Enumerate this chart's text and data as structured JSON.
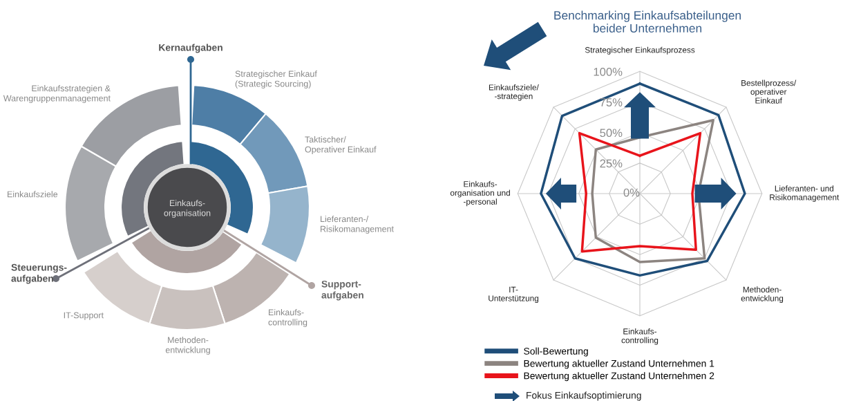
{
  "chart_data": [
    {
      "type": "other",
      "annotations": [
        "Kernaufgaben",
        "Strategischer Einkauf\n(Strategic Sourcing)",
        "Taktischer/\nOperativer Einkauf",
        "Lieferanten-/\nRisikomanagement",
        "Support-\naufgaben",
        "Einkaufs-\ncontrolling",
        "Methoden-\nentwicklung",
        "IT-Support",
        "Steuerungs-\naufgaben",
        "Einkaufsziele",
        "Einkaufsstrategien &\nWarengruppenmanagement",
        "Einkaufs-\norganisation"
      ]
    },
    {
      "type": "radar",
      "title": "Benchmarking Einkaufsabteilungen\nbeider Unternehmen",
      "categories": [
        "Strategischer Einkaufsprozess",
        "Bestellprozess/\noperativer\nEinkauf",
        "Lieferanten- und\nRisikomanagement",
        "Methoden-\nentwicklung",
        "Einkaufs-\ncontrolling",
        "IT-\nUnterstützung",
        "Einkaufs-\norganisation und\n-personal",
        "Einkaufsziele/\n-strategien"
      ],
      "series": [
        {
          "name": "Soll-Bewertung",
          "color": "#1f4e79",
          "values": [
            90,
            91,
            86,
            78,
            67,
            75,
            81,
            90
          ]
        },
        {
          "name": "Bewertung aktueller Zustand Unternehmen 1",
          "color": "#8c8480",
          "values": [
            46,
            85,
            48,
            75,
            56,
            51,
            39,
            51
          ]
        },
        {
          "name": "Bewertung aktueller Zustand Unternehmen 2",
          "color": "#e8141b",
          "values": [
            31,
            70,
            43,
            65,
            43,
            67,
            44,
            70
          ]
        }
      ],
      "ylim": [
        0,
        100
      ],
      "yticks": [
        {
          "value": 0,
          "label": "0%"
        },
        {
          "value": 25,
          "label": "25%"
        },
        {
          "value": 50,
          "label": "50%"
        },
        {
          "value": 75,
          "label": "75%"
        },
        {
          "value": 100,
          "label": "100%"
        }
      ],
      "grid": true,
      "legend": "bottom",
      "line_style": "solid",
      "marker": "none",
      "annotations": [
        "Fokus Einkaufsoptimierung"
      ]
    }
  ]
}
